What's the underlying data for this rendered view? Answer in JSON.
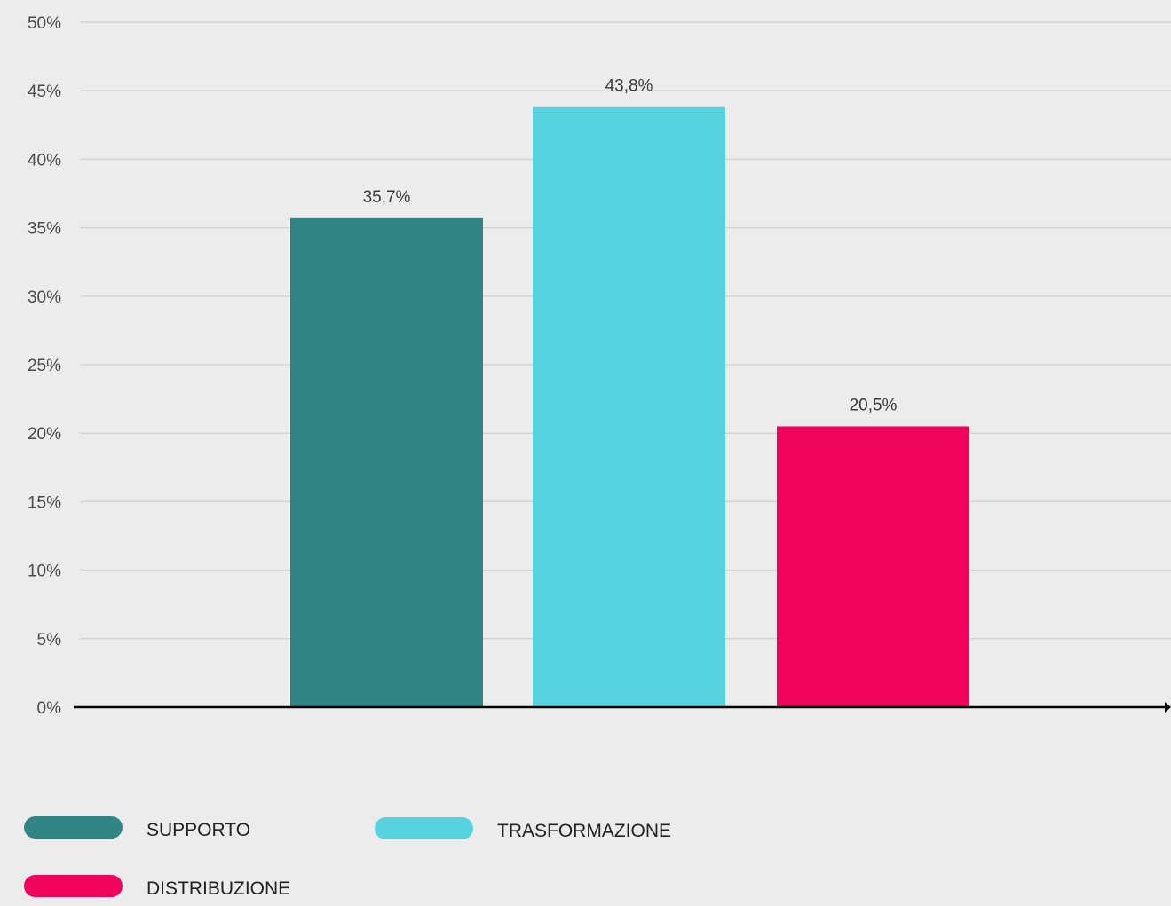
{
  "chart_data": {
    "type": "bar",
    "title": "",
    "xlabel": "",
    "ylabel": "",
    "ylim": [
      0,
      50
    ],
    "ytick_step": 5,
    "ytick_labels": [
      "0%",
      "5%",
      "10%",
      "15%",
      "20%",
      "25%",
      "30%",
      "35%",
      "40%",
      "45%",
      "50%"
    ],
    "grid": true,
    "legend_position": "bottom-left",
    "categories": [
      "SUPPORTO",
      "TRASFORMAZIONE",
      "DISTRIBUZIONE"
    ],
    "values": [
      35.7,
      43.8,
      20.5
    ],
    "data_labels": [
      "35,7%",
      "43,8%",
      "20,5%"
    ],
    "colors": [
      "#318584",
      "#57d3e0",
      "#f0035b"
    ]
  }
}
